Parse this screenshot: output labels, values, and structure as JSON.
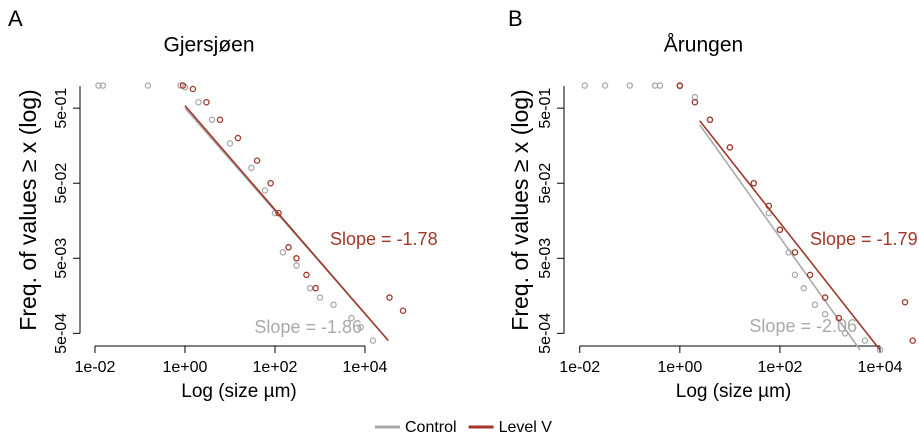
{
  "chart_data": [
    {
      "type": "scatter",
      "panel_label": "A",
      "title": "Gjersjøen",
      "y_label": "Freq. of values ≥ x (log)",
      "x_label": "Log (size µm)",
      "log_x": true,
      "log_y": true,
      "xlim": [
        0.007,
        100000
      ],
      "ylim": [
        0.0003,
        1.3
      ],
      "xticks": [
        {
          "value": 0.01,
          "label": "1e-02"
        },
        {
          "value": 1,
          "label": "1e+00"
        },
        {
          "value": 100,
          "label": "1e+02"
        },
        {
          "value": 10000,
          "label": "1e+04"
        }
      ],
      "yticks": [
        {
          "value": 0.5,
          "label": "5e-01"
        },
        {
          "value": 0.05,
          "label": "5e-02"
        },
        {
          "value": 0.005,
          "label": "5e-03"
        },
        {
          "value": 0.0005,
          "label": "5e-04"
        }
      ],
      "series": [
        {
          "name": "Control",
          "color": "#aaaaaa",
          "slope_label": "Slope = -1.86",
          "x": [
            0.012,
            0.015,
            0.15,
            0.8,
            1,
            2,
            4,
            10,
            30,
            60,
            100,
            150,
            300,
            600,
            1000,
            2000,
            5000,
            8000,
            15000
          ],
          "values": [
            1,
            1,
            1,
            1,
            0.95,
            0.6,
            0.35,
            0.17,
            0.08,
            0.04,
            0.02,
            0.006,
            0.004,
            0.002,
            0.0015,
            0.0012,
            0.0008,
            0.0006,
            0.0004
          ],
          "fit": {
            "x": [
              1,
              21500
            ],
            "values": [
              0.5,
              0.00054
            ]
          }
        },
        {
          "name": "Level V",
          "color": "#a0372a",
          "slope_label": "Slope = -1.78",
          "x": [
            0.9,
            1.5,
            3,
            6,
            15,
            40,
            80,
            120,
            200,
            300,
            500,
            800,
            35000,
            70000
          ],
          "values": [
            1,
            0.9,
            0.6,
            0.35,
            0.2,
            0.1,
            0.05,
            0.02,
            0.007,
            0.005,
            0.003,
            0.002,
            0.0015,
            0.001
          ],
          "fit": {
            "x": [
              1,
              33000
            ],
            "values": [
              0.54,
              0.0004
            ]
          }
        }
      ]
    },
    {
      "type": "scatter",
      "panel_label": "B",
      "title": "Årungen",
      "y_label": "Freq. of values ≥ x (log)",
      "x_label": "Log (size µm)",
      "log_x": true,
      "log_y": true,
      "xlim": [
        0.007,
        50000
      ],
      "ylim": [
        0.0003,
        1.3
      ],
      "xticks": [
        {
          "value": 0.01,
          "label": "1e-02"
        },
        {
          "value": 1,
          "label": "1e+00"
        },
        {
          "value": 100,
          "label": "1e+02"
        },
        {
          "value": 10000,
          "label": "1e+04"
        }
      ],
      "yticks": [
        {
          "value": 0.5,
          "label": "5e-01"
        },
        {
          "value": 0.05,
          "label": "5e-02"
        },
        {
          "value": 0.005,
          "label": "5e-03"
        },
        {
          "value": 0.0005,
          "label": "5e-04"
        }
      ],
      "series": [
        {
          "name": "Control",
          "color": "#aaaaaa",
          "slope_label": "Slope = -2.06",
          "x": [
            0.0126,
            0.032,
            0.1,
            0.32,
            0.4,
            1,
            2,
            4,
            10,
            30,
            60,
            100,
            150,
            200,
            300,
            500,
            800,
            2000,
            5000,
            10000
          ],
          "values": [
            1,
            1,
            1,
            1,
            1,
            0.98,
            0.7,
            0.35,
            0.15,
            0.05,
            0.02,
            0.012,
            0.006,
            0.003,
            0.002,
            0.0012,
            0.0009,
            0.0005,
            0.0004,
            0.0003
          ],
          "fit": {
            "x": [
              2.5,
              4000
            ],
            "values": [
              0.3,
              0.0003
            ]
          }
        },
        {
          "name": "Level V",
          "color": "#a0372a",
          "slope_label": "Slope = -1.79",
          "x": [
            1,
            2,
            4,
            10,
            30,
            60,
            100,
            200,
            400,
            800,
            1500,
            31600,
            45000
          ],
          "values": [
            1,
            0.6,
            0.35,
            0.15,
            0.05,
            0.025,
            0.012,
            0.006,
            0.003,
            0.0015,
            0.0008,
            0.0013,
            0.0004
          ],
          "fit": {
            "x": [
              2.5,
              10000
            ],
            "values": [
              0.34,
              0.0003
            ]
          }
        }
      ]
    }
  ]
}
